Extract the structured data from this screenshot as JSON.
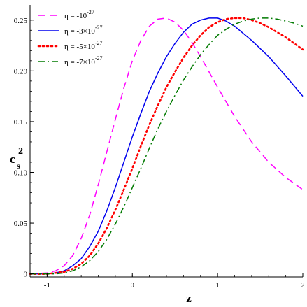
{
  "chart_data": {
    "type": "line",
    "xlabel": "z",
    "ylabel": {
      "base": "c",
      "sub": "s",
      "sup": "2"
    },
    "xlim": [
      -1.2,
      2.0
    ],
    "ylim": [
      -0.003,
      0.265
    ],
    "x_ticks": [
      {
        "value": -1,
        "label": "-1"
      },
      {
        "value": 0,
        "label": "0"
      },
      {
        "value": 1,
        "label": "1"
      },
      {
        "value": 2,
        "label": "2"
      }
    ],
    "y_ticks": [
      {
        "value": 0,
        "label": "0"
      },
      {
        "value": 0.05,
        "label": "0.05"
      },
      {
        "value": 0.1,
        "label": "0.10"
      },
      {
        "value": 0.15,
        "label": "0.15"
      },
      {
        "value": 0.2,
        "label": "0.20"
      },
      {
        "value": 0.25,
        "label": "0.25"
      }
    ],
    "legend_position": "top-left",
    "series": [
      {
        "name": "η = -10^-27",
        "legend": {
          "pre": "η = -10",
          "sup": "-27",
          "post": ""
        },
        "color": "#ff00ff",
        "style": "dash",
        "x": [
          -1.2,
          -1.0,
          -0.9,
          -0.8,
          -0.7,
          -0.6,
          -0.5,
          -0.4,
          -0.3,
          -0.2,
          -0.1,
          0.0,
          0.1,
          0.2,
          0.3,
          0.4,
          0.5,
          0.6,
          0.7,
          0.8,
          0.9,
          1.0,
          1.2,
          1.4,
          1.6,
          1.8,
          2.0
        ],
        "y": [
          0.0,
          0.001,
          0.003,
          0.008,
          0.018,
          0.035,
          0.058,
          0.088,
          0.12,
          0.152,
          0.183,
          0.21,
          0.23,
          0.244,
          0.251,
          0.252,
          0.248,
          0.24,
          0.228,
          0.214,
          0.199,
          0.184,
          0.155,
          0.13,
          0.11,
          0.095,
          0.083
        ]
      },
      {
        "name": "η = -3×10^-27",
        "legend": {
          "pre": "η = -3×10",
          "sup": "-27",
          "post": ""
        },
        "color": "#0000ee",
        "style": "solid",
        "x": [
          -1.2,
          -1.0,
          -0.9,
          -0.8,
          -0.7,
          -0.6,
          -0.5,
          -0.4,
          -0.3,
          -0.2,
          -0.1,
          0.0,
          0.1,
          0.2,
          0.3,
          0.4,
          0.5,
          0.6,
          0.7,
          0.8,
          0.9,
          1.0,
          1.1,
          1.2,
          1.4,
          1.6,
          1.8,
          2.0
        ],
        "y": [
          0.0,
          0.0,
          0.001,
          0.003,
          0.008,
          0.015,
          0.027,
          0.042,
          0.062,
          0.085,
          0.11,
          0.135,
          0.158,
          0.18,
          0.198,
          0.214,
          0.227,
          0.238,
          0.246,
          0.25,
          0.252,
          0.252,
          0.249,
          0.244,
          0.23,
          0.214,
          0.195,
          0.175
        ]
      },
      {
        "name": "η = -5×10^-27",
        "legend": {
          "pre": "η = -5×10",
          "sup": "-27",
          "post": ""
        },
        "color": "#ff0000",
        "style": "dot",
        "x": [
          -1.2,
          -1.0,
          -0.9,
          -0.8,
          -0.7,
          -0.6,
          -0.5,
          -0.4,
          -0.3,
          -0.2,
          -0.1,
          0.0,
          0.1,
          0.2,
          0.3,
          0.4,
          0.5,
          0.6,
          0.7,
          0.8,
          0.9,
          1.0,
          1.1,
          1.2,
          1.3,
          1.4,
          1.5,
          1.6,
          1.8,
          2.0
        ],
        "y": [
          0.0,
          0.0,
          0.001,
          0.002,
          0.005,
          0.01,
          0.018,
          0.03,
          0.045,
          0.063,
          0.083,
          0.104,
          0.126,
          0.147,
          0.166,
          0.184,
          0.199,
          0.213,
          0.225,
          0.235,
          0.243,
          0.248,
          0.251,
          0.252,
          0.252,
          0.25,
          0.247,
          0.243,
          0.233,
          0.221
        ]
      },
      {
        "name": "η = -7×10^-27",
        "legend": {
          "pre": "η = -7×10",
          "sup": "-27",
          "post": ""
        },
        "color": "#007a00",
        "style": "dashdot",
        "x": [
          -1.2,
          -1.0,
          -0.9,
          -0.8,
          -0.7,
          -0.6,
          -0.5,
          -0.4,
          -0.3,
          -0.2,
          -0.1,
          0.0,
          0.1,
          0.2,
          0.3,
          0.4,
          0.5,
          0.6,
          0.7,
          0.8,
          0.9,
          1.0,
          1.1,
          1.2,
          1.3,
          1.4,
          1.5,
          1.6,
          1.7,
          1.8,
          1.9,
          2.0
        ],
        "y": [
          0.0,
          0.0,
          0.0,
          0.001,
          0.003,
          0.007,
          0.013,
          0.022,
          0.034,
          0.049,
          0.066,
          0.085,
          0.104,
          0.124,
          0.143,
          0.16,
          0.176,
          0.191,
          0.204,
          0.216,
          0.226,
          0.235,
          0.241,
          0.246,
          0.249,
          0.251,
          0.252,
          0.252,
          0.251,
          0.249,
          0.247,
          0.244
        ]
      }
    ]
  }
}
